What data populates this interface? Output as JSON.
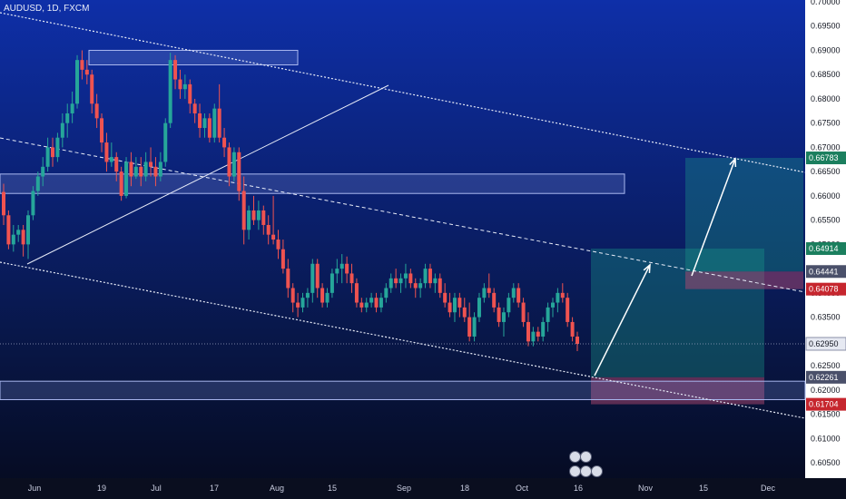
{
  "header": {
    "symbol": "AUDUSD, 1D, FXCM"
  },
  "chart_data": {
    "type": "candlestick",
    "symbol": "AUDUSD",
    "interval": "1D",
    "source": "FXCM",
    "ylim": [
      0.6025,
      0.7
    ],
    "x_ticks": [
      "Jun",
      "19",
      "Jul",
      "17",
      "Aug",
      "15",
      "Sep",
      "18",
      "Oct",
      "16",
      "Nov",
      "15",
      "Dec"
    ],
    "y_ticks": [
      "0.70000",
      "0.69500",
      "0.69000",
      "0.68500",
      "0.68000",
      "0.67500",
      "0.67000",
      "0.66500",
      "0.66000",
      "0.65500",
      "0.65000",
      "0.64500",
      "0.64000",
      "0.63500",
      "0.63000",
      "0.62500",
      "0.62000",
      "0.61500",
      "0.61000",
      "0.60500"
    ],
    "price_labels": [
      {
        "text": "0.66783",
        "value": 0.66783,
        "color": "#1b7f5e"
      },
      {
        "text": "0.64914",
        "value": 0.64914,
        "color": "#1b7f5e"
      },
      {
        "text": "0.64441",
        "value": 0.64441,
        "color": "#4a506a"
      },
      {
        "text": "0.64078",
        "value": 0.64078,
        "color": "#c6262e"
      },
      {
        "text": "0.62950",
        "value": 0.6295,
        "color": "#e6e9f2"
      },
      {
        "text": "0.62261",
        "value": 0.62261,
        "color": "#4a506a"
      },
      {
        "text": "0.61704",
        "value": 0.61704,
        "color": "#c6262e"
      }
    ],
    "candles_ohlc": [
      [
        0.6608,
        0.6625,
        0.654,
        0.656
      ],
      [
        0.656,
        0.657,
        0.649,
        0.65
      ],
      [
        0.65,
        0.654,
        0.6485,
        0.652
      ],
      [
        0.652,
        0.654,
        0.6505,
        0.653
      ],
      [
        0.653,
        0.654,
        0.6475,
        0.65
      ],
      [
        0.65,
        0.657,
        0.647,
        0.656
      ],
      [
        0.656,
        0.662,
        0.655,
        0.661
      ],
      [
        0.661,
        0.665,
        0.66,
        0.664
      ],
      [
        0.664,
        0.668,
        0.662,
        0.666
      ],
      [
        0.666,
        0.672,
        0.665,
        0.67
      ],
      [
        0.67,
        0.672,
        0.666,
        0.668
      ],
      [
        0.668,
        0.673,
        0.667,
        0.672
      ],
      [
        0.672,
        0.677,
        0.67,
        0.675
      ],
      [
        0.675,
        0.679,
        0.672,
        0.677
      ],
      [
        0.677,
        0.6815,
        0.675,
        0.679
      ],
      [
        0.679,
        0.689,
        0.678,
        0.688
      ],
      [
        0.688,
        0.69,
        0.684,
        0.686
      ],
      [
        0.686,
        0.688,
        0.683,
        0.685
      ],
      [
        0.685,
        0.686,
        0.677,
        0.679
      ],
      [
        0.679,
        0.681,
        0.674,
        0.676
      ],
      [
        0.676,
        0.677,
        0.669,
        0.671
      ],
      [
        0.671,
        0.673,
        0.665,
        0.667
      ],
      [
        0.667,
        0.671,
        0.666,
        0.668
      ],
      [
        0.668,
        0.669,
        0.663,
        0.665
      ],
      [
        0.665,
        0.666,
        0.659,
        0.66
      ],
      [
        0.66,
        0.668,
        0.6595,
        0.667
      ],
      [
        0.667,
        0.669,
        0.662,
        0.664
      ],
      [
        0.664,
        0.668,
        0.6635,
        0.666
      ],
      [
        0.666,
        0.668,
        0.662,
        0.664
      ],
      [
        0.664,
        0.669,
        0.663,
        0.667
      ],
      [
        0.667,
        0.67,
        0.664,
        0.666
      ],
      [
        0.666,
        0.668,
        0.662,
        0.664
      ],
      [
        0.664,
        0.669,
        0.663,
        0.667
      ],
      [
        0.667,
        0.676,
        0.666,
        0.675
      ],
      [
        0.675,
        0.6895,
        0.674,
        0.688
      ],
      [
        0.688,
        0.689,
        0.682,
        0.684
      ],
      [
        0.684,
        0.686,
        0.68,
        0.682
      ],
      [
        0.682,
        0.685,
        0.68,
        0.683
      ],
      [
        0.683,
        0.684,
        0.677,
        0.679
      ],
      [
        0.679,
        0.68,
        0.675,
        0.677
      ],
      [
        0.677,
        0.679,
        0.672,
        0.674
      ],
      [
        0.674,
        0.677,
        0.672,
        0.676
      ],
      [
        0.676,
        0.677,
        0.671,
        0.672
      ],
      [
        0.672,
        0.679,
        0.671,
        0.678
      ],
      [
        0.678,
        0.683,
        0.671,
        0.672
      ],
      [
        0.672,
        0.674,
        0.668,
        0.67
      ],
      [
        0.67,
        0.671,
        0.662,
        0.664
      ],
      [
        0.664,
        0.67,
        0.663,
        0.669
      ],
      [
        0.669,
        0.67,
        0.659,
        0.661
      ],
      [
        0.661,
        0.664,
        0.65,
        0.653
      ],
      [
        0.653,
        0.658,
        0.651,
        0.657
      ],
      [
        0.657,
        0.66,
        0.654,
        0.655
      ],
      [
        0.655,
        0.659,
        0.653,
        0.657
      ],
      [
        0.657,
        0.658,
        0.652,
        0.654
      ],
      [
        0.654,
        0.656,
        0.65,
        0.652
      ],
      [
        0.652,
        0.66,
        0.65,
        0.651
      ],
      [
        0.651,
        0.653,
        0.647,
        0.649
      ],
      [
        0.649,
        0.651,
        0.644,
        0.645
      ],
      [
        0.645,
        0.647,
        0.639,
        0.641
      ],
      [
        0.641,
        0.642,
        0.636,
        0.638
      ],
      [
        0.638,
        0.64,
        0.635,
        0.637
      ],
      [
        0.637,
        0.64,
        0.636,
        0.639
      ],
      [
        0.639,
        0.641,
        0.637,
        0.64
      ],
      [
        0.64,
        0.647,
        0.638,
        0.646
      ],
      [
        0.646,
        0.647,
        0.639,
        0.641
      ],
      [
        0.641,
        0.642,
        0.637,
        0.638
      ],
      [
        0.638,
        0.641,
        0.637,
        0.64
      ],
      [
        0.64,
        0.645,
        0.639,
        0.644
      ],
      [
        0.644,
        0.647,
        0.642,
        0.645
      ],
      [
        0.645,
        0.648,
        0.642,
        0.646
      ],
      [
        0.646,
        0.6475,
        0.642,
        0.644
      ],
      [
        0.644,
        0.646,
        0.64,
        0.642
      ],
      [
        0.642,
        0.643,
        0.637,
        0.638
      ],
      [
        0.638,
        0.639,
        0.636,
        0.637
      ],
      [
        0.637,
        0.639,
        0.636,
        0.638
      ],
      [
        0.638,
        0.64,
        0.637,
        0.639
      ],
      [
        0.639,
        0.64,
        0.636,
        0.637
      ],
      [
        0.637,
        0.64,
        0.636,
        0.639
      ],
      [
        0.639,
        0.642,
        0.638,
        0.641
      ],
      [
        0.641,
        0.644,
        0.64,
        0.643
      ],
      [
        0.643,
        0.645,
        0.641,
        0.642
      ],
      [
        0.642,
        0.644,
        0.64,
        0.643
      ],
      [
        0.643,
        0.646,
        0.641,
        0.644
      ],
      [
        0.644,
        0.645,
        0.641,
        0.642
      ],
      [
        0.642,
        0.643,
        0.639,
        0.641
      ],
      [
        0.641,
        0.643,
        0.639,
        0.642
      ],
      [
        0.642,
        0.646,
        0.641,
        0.645
      ],
      [
        0.645,
        0.646,
        0.641,
        0.642
      ],
      [
        0.642,
        0.644,
        0.64,
        0.643
      ],
      [
        0.643,
        0.644,
        0.639,
        0.64
      ],
      [
        0.64,
        0.642,
        0.637,
        0.638
      ],
      [
        0.638,
        0.64,
        0.635,
        0.636
      ],
      [
        0.636,
        0.64,
        0.634,
        0.639
      ],
      [
        0.639,
        0.64,
        0.635,
        0.637
      ],
      [
        0.637,
        0.639,
        0.634,
        0.635
      ],
      [
        0.635,
        0.638,
        0.63,
        0.631
      ],
      [
        0.631,
        0.636,
        0.63,
        0.635
      ],
      [
        0.635,
        0.64,
        0.634,
        0.639
      ],
      [
        0.639,
        0.642,
        0.638,
        0.641
      ],
      [
        0.641,
        0.644,
        0.639,
        0.64
      ],
      [
        0.64,
        0.641,
        0.636,
        0.637
      ],
      [
        0.637,
        0.638,
        0.633,
        0.634
      ],
      [
        0.634,
        0.637,
        0.631,
        0.636
      ],
      [
        0.636,
        0.64,
        0.635,
        0.639
      ],
      [
        0.639,
        0.642,
        0.638,
        0.641
      ],
      [
        0.641,
        0.642,
        0.637,
        0.638
      ],
      [
        0.638,
        0.639,
        0.633,
        0.634
      ],
      [
        0.634,
        0.636,
        0.629,
        0.63
      ],
      [
        0.63,
        0.633,
        0.629,
        0.632
      ],
      [
        0.632,
        0.633,
        0.63,
        0.631
      ],
      [
        0.631,
        0.635,
        0.63,
        0.634
      ],
      [
        0.634,
        0.638,
        0.632,
        0.637
      ],
      [
        0.637,
        0.639,
        0.635,
        0.638
      ],
      [
        0.638,
        0.641,
        0.636,
        0.64
      ],
      [
        0.64,
        0.642,
        0.638,
        0.639
      ],
      [
        0.639,
        0.64,
        0.633,
        0.634
      ],
      [
        0.634,
        0.635,
        0.63,
        0.631
      ],
      [
        0.631,
        0.632,
        0.628,
        0.6295
      ]
    ],
    "zones": [
      {
        "low": 0.6605,
        "high": 0.6645
      },
      {
        "low": 0.618,
        "high": 0.6218
      },
      {
        "low": 0.687,
        "high": 0.69
      }
    ],
    "projections": [
      {
        "target": 0.64914,
        "stop": 0.61704,
        "entry": 0.62261
      },
      {
        "target": 0.66783,
        "stop": 0.64078,
        "entry": 0.64441
      }
    ]
  }
}
